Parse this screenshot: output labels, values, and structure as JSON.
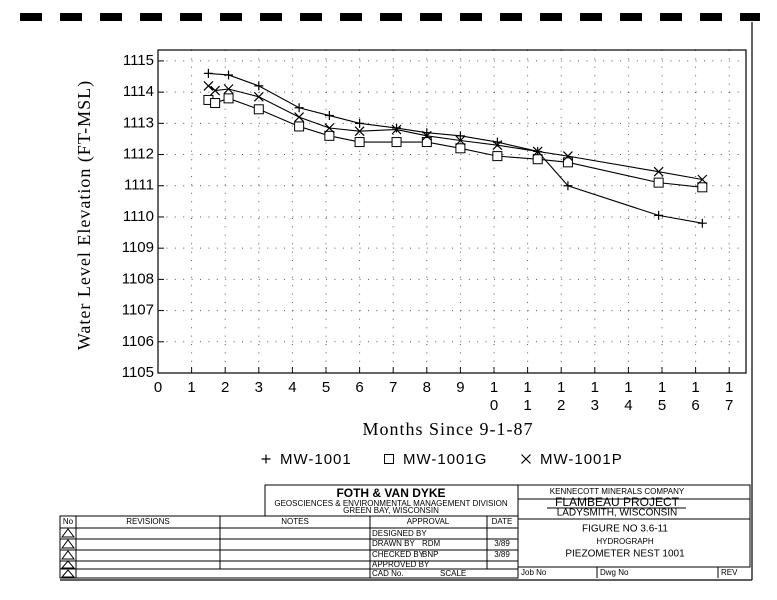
{
  "chart_data": {
    "type": "line",
    "y_label": "Water Level Elevation (FT-MSL)",
    "x_label": "Months Since 9-1-87",
    "xlim": [
      0,
      17.5
    ],
    "ylim": [
      1105,
      1115.35
    ],
    "xticks": [
      0,
      1,
      2,
      3,
      4,
      5,
      6,
      7,
      8,
      9,
      10,
      11,
      12,
      13,
      14,
      15,
      16,
      17
    ],
    "yticks": [
      1105,
      1106,
      1107,
      1108,
      1109,
      1110,
      1111,
      1112,
      1113,
      1114,
      1115
    ],
    "grid": true,
    "series": [
      {
        "name": "MW-1001",
        "marker": "plus",
        "color": "#000000",
        "x": [
          1.5,
          2.1,
          3.0,
          4.2,
          5.1,
          6.0,
          7.1,
          8.0,
          9.0,
          10.1,
          11.3,
          12.2,
          14.9,
          16.2
        ],
        "values": [
          1114.6,
          1114.55,
          1114.2,
          1113.5,
          1113.25,
          1113.0,
          1112.85,
          1112.7,
          1112.6,
          1112.4,
          1112.1,
          1111.0,
          1110.05,
          1109.8
        ]
      },
      {
        "name": "MW-1001G",
        "marker": "square",
        "color": "#000000",
        "x": [
          1.5,
          1.7,
          2.1,
          3.0,
          4.2,
          5.1,
          6.0,
          7.1,
          8.0,
          9.0,
          10.1,
          11.3,
          12.2,
          14.9,
          16.2
        ],
        "values": [
          1113.75,
          1113.65,
          1113.8,
          1113.45,
          1112.9,
          1112.6,
          1112.4,
          1112.4,
          1112.4,
          1112.2,
          1111.95,
          1111.85,
          1111.75,
          1111.1,
          1110.95
        ]
      },
      {
        "name": "MW-1001P",
        "marker": "cross",
        "color": "#000000",
        "x": [
          1.5,
          1.7,
          2.1,
          3.0,
          4.2,
          5.1,
          6.0,
          7.1,
          8.0,
          9.0,
          10.1,
          11.3,
          12.2,
          14.9,
          16.2
        ],
        "values": [
          1114.2,
          1114.05,
          1114.1,
          1113.85,
          1113.2,
          1112.85,
          1112.75,
          1112.8,
          1112.6,
          1112.45,
          1112.3,
          1112.1,
          1111.95,
          1111.45,
          1111.2
        ]
      }
    ]
  },
  "title_block": {
    "company": "FOTH & VAN DYKE",
    "division": "GEOSCIENCES & ENVIRONMENTAL MANAGEMENT DIVISION",
    "location": "GREEN BAY, WISCONSIN",
    "client": "KENNECOTT MINERALS COMPANY",
    "project": "FLAMBEAU PROJECT",
    "project_location": "LADYSMITH, WISCONSIN",
    "figure": "FIGURE NO 3.6-11",
    "figure_title": "HYDROGRAPH",
    "figure_subtitle": "PIEZOMETER NEST 1001",
    "headers": [
      "No",
      "REVISIONS",
      "NOTES",
      "APPROVAL",
      "DATE"
    ],
    "approvals": [
      {
        "label": "DESIGNED BY"
      },
      {
        "label": "DRAWN BY",
        "initials": "RDM",
        "date": "3/89"
      },
      {
        "label": "CHECKED BY",
        "initials": "BNP",
        "date": "3/89"
      },
      {
        "label": "APPROVED BY"
      }
    ],
    "cad": "CAD No.",
    "scale": "SCALE",
    "job": "Job No",
    "dwg": "Dwg No",
    "rev": "REV"
  }
}
